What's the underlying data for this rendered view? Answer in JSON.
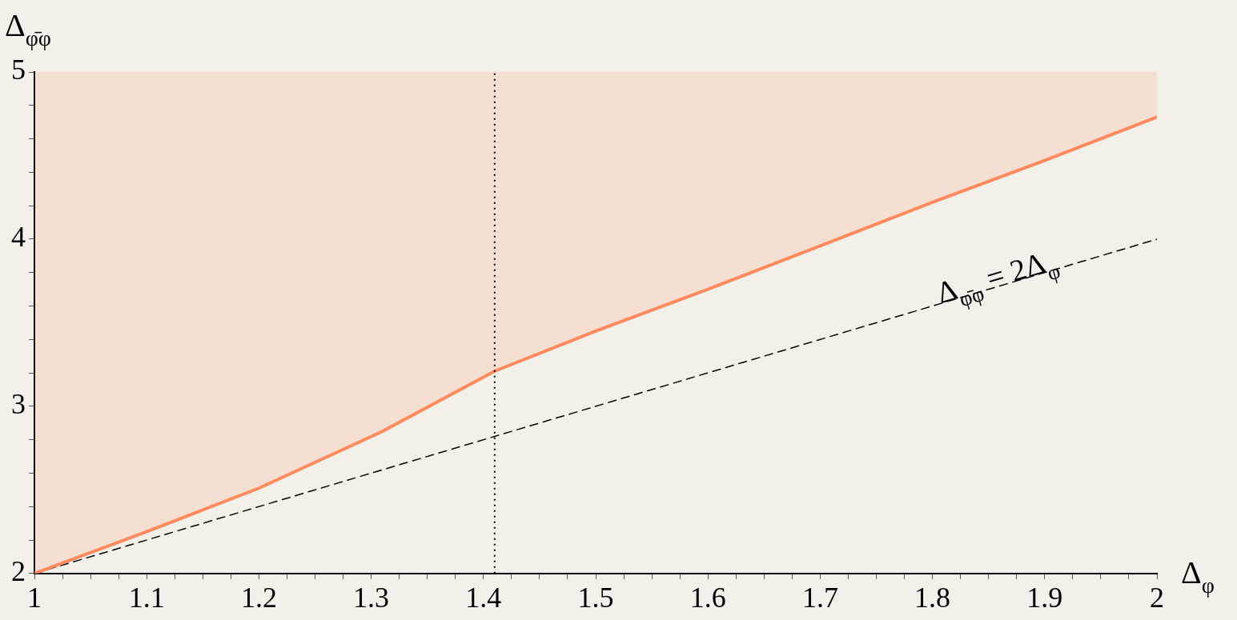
{
  "chart_data": {
    "type": "line",
    "xlabel": "Δ$_{φ}$",
    "ylabel": "Δ$_{φ̄φ}$",
    "xlim": [
      1,
      2
    ],
    "ylim": [
      2,
      5
    ],
    "xticks": [
      1,
      {
        "value": 1.025,
        "label": null
      },
      {
        "value": 1.05,
        "label": null
      },
      {
        "value": 1.075,
        "label": null
      },
      1.1,
      {
        "value": 1.125,
        "label": null
      },
      {
        "value": 1.15,
        "label": null
      },
      {
        "value": 1.175,
        "label": null
      },
      1.2,
      {
        "value": 1.225,
        "label": null
      },
      {
        "value": 1.25,
        "label": null
      },
      {
        "value": 1.275,
        "label": null
      },
      1.3,
      {
        "value": 1.325,
        "label": null
      },
      {
        "value": 1.35,
        "label": null
      },
      {
        "value": 1.375,
        "label": null
      },
      1.4,
      {
        "value": 1.425,
        "label": null
      },
      {
        "value": 1.45,
        "label": null
      },
      {
        "value": 1.475,
        "label": null
      },
      1.5,
      {
        "value": 1.525,
        "label": null
      },
      {
        "value": 1.55,
        "label": null
      },
      {
        "value": 1.575,
        "label": null
      },
      1.6,
      {
        "value": 1.625,
        "label": null
      },
      {
        "value": 1.65,
        "label": null
      },
      {
        "value": 1.675,
        "label": null
      },
      1.7,
      {
        "value": 1.725,
        "label": null
      },
      {
        "value": 1.75,
        "label": null
      },
      {
        "value": 1.775,
        "label": null
      },
      1.8,
      {
        "value": 1.825,
        "label": null
      },
      {
        "value": 1.85,
        "label": null
      },
      {
        "value": 1.875,
        "label": null
      },
      1.9,
      {
        "value": 1.925,
        "label": null
      },
      {
        "value": 1.95,
        "label": null
      },
      {
        "value": 1.975,
        "label": null
      },
      2
    ],
    "yticks": [
      2,
      {
        "value": 2.2,
        "label": null
      },
      {
        "value": 2.4,
        "label": null
      },
      {
        "value": 2.6,
        "label": null
      },
      {
        "value": 2.8,
        "label": null
      },
      3,
      {
        "value": 3.2,
        "label": null
      },
      {
        "value": 3.4,
        "label": null
      },
      {
        "value": 3.6,
        "label": null
      },
      {
        "value": 3.8,
        "label": null
      },
      4,
      {
        "value": 4.2,
        "label": null
      },
      {
        "value": 4.4,
        "label": null
      },
      {
        "value": 4.6,
        "label": null
      },
      {
        "value": 4.8,
        "label": null
      },
      5
    ],
    "grid": false,
    "legend": false,
    "marker": "none",
    "series": [
      {
        "color": "#ff8a5c",
        "line_style": "solid",
        "x": [
          1,
          1.1,
          1.2,
          1.31,
          1.41,
          1.5,
          1.6,
          1.7,
          1.8,
          1.9,
          2
        ],
        "values": [
          2,
          2.25,
          2.51,
          2.85,
          3.21,
          3.45,
          3.7,
          3.96,
          4.22,
          4.47,
          4.73
        ],
        "lower": [
          2,
          2.25,
          2.51,
          2.85,
          3.21,
          3.45,
          3.7,
          3.96,
          4.22,
          4.47,
          4.73
        ],
        "upper": [
          5,
          5,
          5,
          5,
          5,
          5,
          5,
          5,
          5,
          5,
          5
        ]
      },
      {
        "color": "#000000",
        "line_style": "dashed",
        "x": [
          1,
          2
        ],
        "values": [
          2,
          4
        ]
      }
    ],
    "ref_lines": [
      {
        "axis": "x",
        "value": 1.41,
        "color": "#000000",
        "line_style": "dotted"
      }
    ],
    "annotations": [
      {
        "text": "Δ$_{φ̄φ}$ = 2Δ$_{φ}$",
        "x": 1.86,
        "y": 3.72
      }
    ]
  }
}
